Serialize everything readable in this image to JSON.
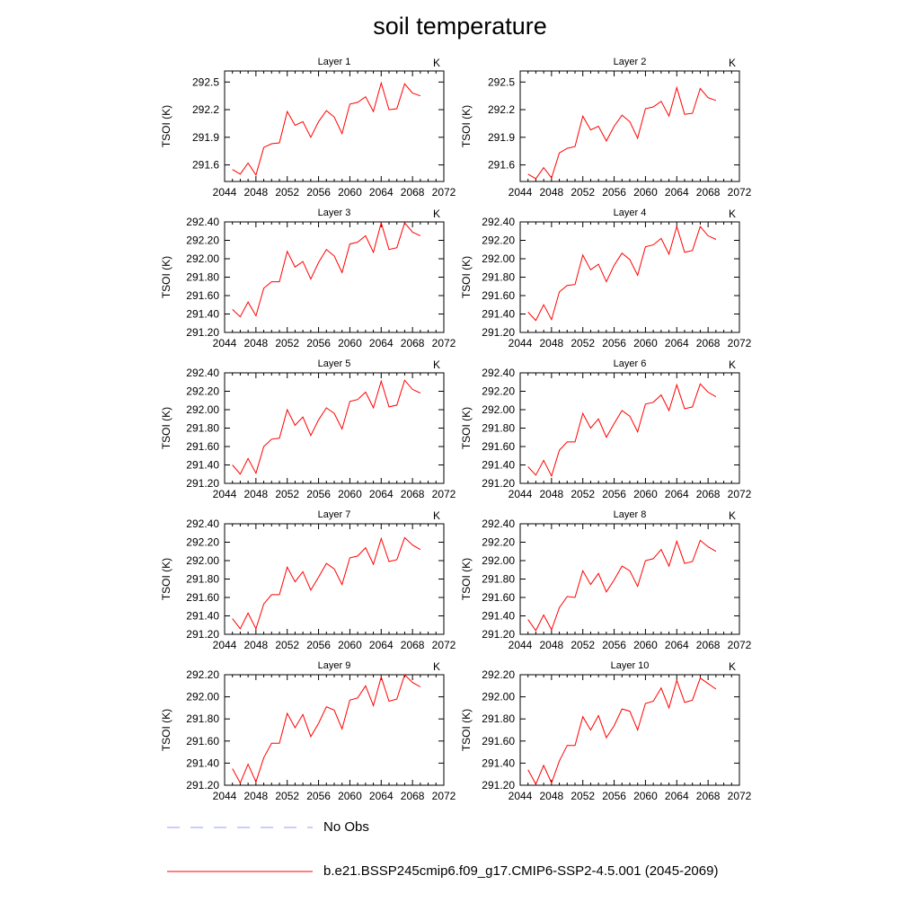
{
  "title": "soil temperature",
  "legend": [
    {
      "label": "No Obs",
      "color": "#9999ff",
      "dash": true
    },
    {
      "label": "b.e21.BSSP245cmip6.f09_g17.CMIP6-SSP2-4.5.001 (2045-2069)",
      "color": "#ff0000",
      "dash": false
    }
  ],
  "chart_data": [
    {
      "type": "line",
      "title": "Layer 1",
      "units": "K",
      "ylabel": "TSOI  (K)",
      "xlim": [
        2044,
        2072
      ],
      "xticks": [
        2044,
        2048,
        2052,
        2056,
        2060,
        2064,
        2068,
        2072
      ],
      "ylim": [
        291.42,
        292.62
      ],
      "yticks": [
        291.6,
        291.9,
        292.2,
        292.5
      ],
      "ytick_labels": [
        "291.6",
        "291.9",
        "292.2",
        "292.5"
      ],
      "series": [
        {
          "color": "#ff0000",
          "x": [
            2045,
            2046,
            2047,
            2048,
            2049,
            2050,
            2051,
            2052,
            2053,
            2054,
            2055,
            2056,
            2057,
            2058,
            2059,
            2060,
            2061,
            2062,
            2063,
            2064,
            2065,
            2066,
            2067,
            2068,
            2069
          ],
          "values": [
            291.55,
            291.5,
            291.62,
            291.49,
            291.79,
            291.83,
            291.84,
            292.18,
            292.03,
            292.07,
            291.9,
            292.07,
            292.19,
            292.12,
            291.94,
            292.26,
            292.28,
            292.34,
            292.18,
            292.49,
            292.2,
            292.21,
            292.48,
            292.38,
            292.35
          ]
        }
      ]
    },
    {
      "type": "line",
      "title": "Layer 2",
      "units": "K",
      "ylabel": "TSOI  (K)",
      "xlim": [
        2044,
        2072
      ],
      "xticks": [
        2044,
        2048,
        2052,
        2056,
        2060,
        2064,
        2068,
        2072
      ],
      "ylim": [
        291.42,
        292.62
      ],
      "yticks": [
        291.6,
        291.9,
        292.2,
        292.5
      ],
      "ytick_labels": [
        "291.6",
        "291.9",
        "292.2",
        "292.5"
      ],
      "series": [
        {
          "color": "#ff0000",
          "x": [
            2045,
            2046,
            2047,
            2048,
            2049,
            2050,
            2051,
            2052,
            2053,
            2054,
            2055,
            2056,
            2057,
            2058,
            2059,
            2060,
            2061,
            2062,
            2063,
            2064,
            2065,
            2066,
            2067,
            2068,
            2069
          ],
          "values": [
            291.5,
            291.45,
            291.57,
            291.46,
            291.73,
            291.78,
            291.8,
            292.13,
            291.98,
            292.02,
            291.86,
            292.02,
            292.14,
            292.07,
            291.89,
            292.21,
            292.23,
            292.29,
            292.13,
            292.44,
            292.15,
            292.16,
            292.43,
            292.33,
            292.3
          ]
        }
      ]
    },
    {
      "type": "line",
      "title": "Layer 3",
      "units": "K",
      "ylabel": "TSOI  (K)",
      "xlim": [
        2044,
        2072
      ],
      "xticks": [
        2044,
        2048,
        2052,
        2056,
        2060,
        2064,
        2068,
        2072
      ],
      "ylim": [
        291.2,
        292.4
      ],
      "yticks": [
        291.2,
        291.4,
        291.6,
        291.8,
        292.0,
        292.2,
        292.4
      ],
      "ytick_labels": [
        "291.20",
        "291.40",
        "291.60",
        "291.80",
        "292.00",
        "292.20",
        "292.40"
      ],
      "series": [
        {
          "color": "#ff0000",
          "x": [
            2045,
            2046,
            2047,
            2048,
            2049,
            2050,
            2051,
            2052,
            2053,
            2054,
            2055,
            2056,
            2057,
            2058,
            2059,
            2060,
            2061,
            2062,
            2063,
            2064,
            2065,
            2066,
            2067,
            2068,
            2069
          ],
          "values": [
            291.45,
            291.37,
            291.53,
            291.38,
            291.68,
            291.75,
            291.75,
            292.08,
            291.91,
            291.97,
            291.78,
            291.96,
            292.1,
            292.03,
            291.85,
            292.16,
            292.18,
            292.25,
            292.07,
            292.39,
            292.1,
            292.12,
            292.39,
            292.29,
            292.25
          ]
        }
      ]
    },
    {
      "type": "line",
      "title": "Layer 4",
      "units": "K",
      "ylabel": "TSOI  (K)",
      "xlim": [
        2044,
        2072
      ],
      "xticks": [
        2044,
        2048,
        2052,
        2056,
        2060,
        2064,
        2068,
        2072
      ],
      "ylim": [
        291.2,
        292.4
      ],
      "yticks": [
        291.2,
        291.4,
        291.6,
        291.8,
        292.0,
        292.2,
        292.4
      ],
      "ytick_labels": [
        "291.20",
        "291.40",
        "291.60",
        "291.80",
        "292.00",
        "292.20",
        "292.40"
      ],
      "series": [
        {
          "color": "#ff0000",
          "x": [
            2045,
            2046,
            2047,
            2048,
            2049,
            2050,
            2051,
            2052,
            2053,
            2054,
            2055,
            2056,
            2057,
            2058,
            2059,
            2060,
            2061,
            2062,
            2063,
            2064,
            2065,
            2066,
            2067,
            2068,
            2069
          ],
          "values": [
            291.42,
            291.33,
            291.5,
            291.34,
            291.64,
            291.71,
            291.72,
            292.04,
            291.88,
            291.94,
            291.75,
            291.93,
            292.06,
            291.99,
            291.82,
            292.13,
            292.15,
            292.22,
            292.05,
            292.35,
            292.07,
            292.09,
            292.35,
            292.25,
            292.21
          ]
        }
      ]
    },
    {
      "type": "line",
      "title": "Layer 5",
      "units": "K",
      "ylabel": "TSOI  (K)",
      "xlim": [
        2044,
        2072
      ],
      "xticks": [
        2044,
        2048,
        2052,
        2056,
        2060,
        2064,
        2068,
        2072
      ],
      "ylim": [
        291.2,
        292.4
      ],
      "yticks": [
        291.2,
        291.4,
        291.6,
        291.8,
        292.0,
        292.2,
        292.4
      ],
      "ytick_labels": [
        "291.20",
        "291.40",
        "291.60",
        "291.80",
        "292.00",
        "292.20",
        "292.40"
      ],
      "series": [
        {
          "color": "#ff0000",
          "x": [
            2045,
            2046,
            2047,
            2048,
            2049,
            2050,
            2051,
            2052,
            2053,
            2054,
            2055,
            2056,
            2057,
            2058,
            2059,
            2060,
            2061,
            2062,
            2063,
            2064,
            2065,
            2066,
            2067,
            2068,
            2069
          ],
          "values": [
            291.4,
            291.3,
            291.47,
            291.31,
            291.6,
            291.68,
            291.69,
            292.0,
            291.83,
            291.92,
            291.72,
            291.89,
            292.02,
            291.96,
            291.79,
            292.09,
            292.11,
            292.19,
            292.02,
            292.31,
            292.03,
            292.05,
            292.32,
            292.22,
            292.18
          ]
        }
      ]
    },
    {
      "type": "line",
      "title": "Layer 6",
      "units": "K",
      "ylabel": "TSOI  (K)",
      "xlim": [
        2044,
        2072
      ],
      "xticks": [
        2044,
        2048,
        2052,
        2056,
        2060,
        2064,
        2068,
        2072
      ],
      "ylim": [
        291.2,
        292.4
      ],
      "yticks": [
        291.2,
        291.4,
        291.6,
        291.8,
        292.0,
        292.2,
        292.4
      ],
      "ytick_labels": [
        "291.20",
        "291.40",
        "291.60",
        "291.80",
        "292.00",
        "292.20",
        "292.40"
      ],
      "series": [
        {
          "color": "#ff0000",
          "x": [
            2045,
            2046,
            2047,
            2048,
            2049,
            2050,
            2051,
            2052,
            2053,
            2054,
            2055,
            2056,
            2057,
            2058,
            2059,
            2060,
            2061,
            2062,
            2063,
            2064,
            2065,
            2066,
            2067,
            2068,
            2069
          ],
          "values": [
            291.38,
            291.29,
            291.45,
            291.28,
            291.56,
            291.65,
            291.65,
            291.96,
            291.8,
            291.9,
            291.7,
            291.85,
            291.99,
            291.93,
            291.76,
            292.06,
            292.08,
            292.16,
            291.99,
            292.27,
            292.01,
            292.03,
            292.28,
            292.19,
            292.14
          ]
        }
      ]
    },
    {
      "type": "line",
      "title": "Layer 7",
      "units": "K",
      "ylabel": "TSOI  (K)",
      "xlim": [
        2044,
        2072
      ],
      "xticks": [
        2044,
        2048,
        2052,
        2056,
        2060,
        2064,
        2068,
        2072
      ],
      "ylim": [
        291.2,
        292.4
      ],
      "yticks": [
        291.2,
        291.4,
        291.6,
        291.8,
        292.0,
        292.2,
        292.4
      ],
      "ytick_labels": [
        "291.20",
        "291.40",
        "291.60",
        "291.80",
        "292.00",
        "292.20",
        "292.40"
      ],
      "series": [
        {
          "color": "#ff0000",
          "x": [
            2045,
            2046,
            2047,
            2048,
            2049,
            2050,
            2051,
            2052,
            2053,
            2054,
            2055,
            2056,
            2057,
            2058,
            2059,
            2060,
            2061,
            2062,
            2063,
            2064,
            2065,
            2066,
            2067,
            2068,
            2069
          ],
          "values": [
            291.37,
            291.26,
            291.43,
            291.26,
            291.53,
            291.63,
            291.63,
            291.93,
            291.77,
            291.88,
            291.68,
            291.82,
            291.97,
            291.91,
            291.74,
            292.03,
            292.05,
            292.14,
            291.96,
            292.24,
            291.99,
            292.01,
            292.25,
            292.17,
            292.12
          ]
        }
      ]
    },
    {
      "type": "line",
      "title": "Layer 8",
      "units": "K",
      "ylabel": "TSOI  (K)",
      "xlim": [
        2044,
        2072
      ],
      "xticks": [
        2044,
        2048,
        2052,
        2056,
        2060,
        2064,
        2068,
        2072
      ],
      "ylim": [
        291.2,
        292.4
      ],
      "yticks": [
        291.2,
        291.4,
        291.6,
        291.8,
        292.0,
        292.2,
        292.4
      ],
      "ytick_labels": [
        "291.20",
        "291.40",
        "291.60",
        "291.80",
        "292.00",
        "292.20",
        "292.40"
      ],
      "series": [
        {
          "color": "#ff0000",
          "x": [
            2045,
            2046,
            2047,
            2048,
            2049,
            2050,
            2051,
            2052,
            2053,
            2054,
            2055,
            2056,
            2057,
            2058,
            2059,
            2060,
            2061,
            2062,
            2063,
            2064,
            2065,
            2066,
            2067,
            2068,
            2069
          ],
          "values": [
            291.36,
            291.24,
            291.41,
            291.25,
            291.49,
            291.61,
            291.6,
            291.89,
            291.74,
            291.86,
            291.66,
            291.79,
            291.94,
            291.89,
            291.72,
            292.0,
            292.02,
            292.12,
            291.94,
            292.21,
            291.97,
            291.99,
            292.22,
            292.15,
            292.1
          ]
        }
      ]
    },
    {
      "type": "line",
      "title": "Layer 9",
      "units": "K",
      "ylabel": "TSOI  (K)",
      "xlim": [
        2044,
        2072
      ],
      "xticks": [
        2044,
        2048,
        2052,
        2056,
        2060,
        2064,
        2068,
        2072
      ],
      "ylim": [
        291.2,
        292.2
      ],
      "yticks": [
        291.2,
        291.4,
        291.6,
        291.8,
        292.0,
        292.2
      ],
      "ytick_labels": [
        "291.20",
        "291.40",
        "291.60",
        "291.80",
        "292.00",
        "292.20"
      ],
      "series": [
        {
          "color": "#ff0000",
          "x": [
            2045,
            2046,
            2047,
            2048,
            2049,
            2050,
            2051,
            2052,
            2053,
            2054,
            2055,
            2056,
            2057,
            2058,
            2059,
            2060,
            2061,
            2062,
            2063,
            2064,
            2065,
            2066,
            2067,
            2068,
            2069
          ],
          "values": [
            291.35,
            291.22,
            291.39,
            291.23,
            291.45,
            291.58,
            291.58,
            291.85,
            291.72,
            291.84,
            291.64,
            291.76,
            291.91,
            291.88,
            291.71,
            291.97,
            291.99,
            292.1,
            291.92,
            292.18,
            291.96,
            291.98,
            292.2,
            292.13,
            292.09
          ]
        }
      ]
    },
    {
      "type": "line",
      "title": "Layer 10",
      "units": "K",
      "ylabel": "TSOI  (K)",
      "xlim": [
        2044,
        2072
      ],
      "xticks": [
        2044,
        2048,
        2052,
        2056,
        2060,
        2064,
        2068,
        2072
      ],
      "ylim": [
        291.2,
        292.2
      ],
      "yticks": [
        291.2,
        291.4,
        291.6,
        291.8,
        292.0,
        292.2
      ],
      "ytick_labels": [
        "291.20",
        "291.40",
        "291.60",
        "291.80",
        "292.00",
        "292.20"
      ],
      "series": [
        {
          "color": "#ff0000",
          "x": [
            2045,
            2046,
            2047,
            2048,
            2049,
            2050,
            2051,
            2052,
            2053,
            2054,
            2055,
            2056,
            2057,
            2058,
            2059,
            2060,
            2061,
            2062,
            2063,
            2064,
            2065,
            2066,
            2067,
            2068,
            2069
          ],
          "values": [
            291.34,
            291.21,
            291.38,
            291.22,
            291.42,
            291.56,
            291.56,
            291.82,
            291.7,
            291.83,
            291.63,
            291.74,
            291.89,
            291.87,
            291.7,
            291.94,
            291.96,
            292.08,
            291.9,
            292.15,
            291.95,
            291.97,
            292.17,
            292.12,
            292.07
          ]
        }
      ]
    }
  ]
}
